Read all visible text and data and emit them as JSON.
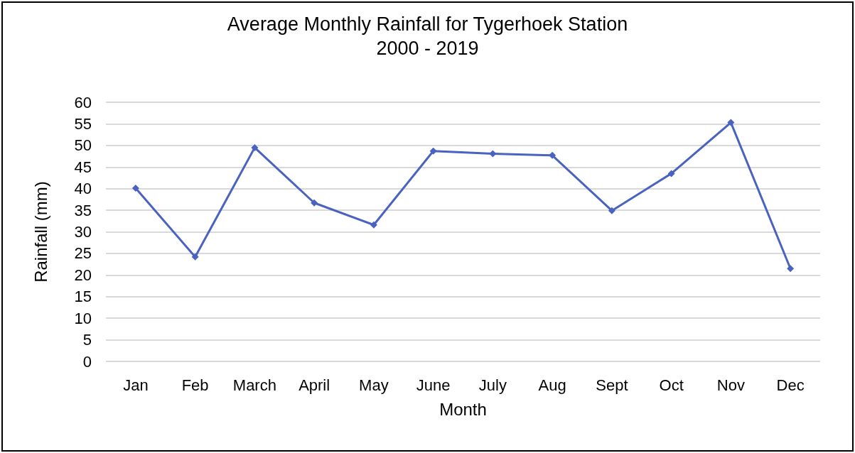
{
  "chart_data": {
    "type": "line",
    "title": "Average Monthly Rainfall for Tygerhoek Station\n2000 - 2019",
    "xlabel": "Month",
    "ylabel": "Rainfall (mm)",
    "categories": [
      "Jan",
      "Feb",
      "March",
      "April",
      "May",
      "June",
      "July",
      "Aug",
      "Sept",
      "Oct",
      "Nov",
      "Dec"
    ],
    "series": [
      {
        "color": "#4a62c0",
        "values": [
          40.1,
          24.2,
          49.5,
          36.7,
          31.6,
          48.7,
          48.1,
          47.7,
          34.9,
          43.5,
          55.3,
          21.5
        ]
      }
    ],
    "ylim": [
      0,
      60
    ],
    "yticks": [
      0,
      5,
      10,
      15,
      20,
      25,
      30,
      35,
      40,
      45,
      50,
      55,
      60
    ],
    "grid": "y",
    "marker": "diamond",
    "line_style": "solid"
  }
}
